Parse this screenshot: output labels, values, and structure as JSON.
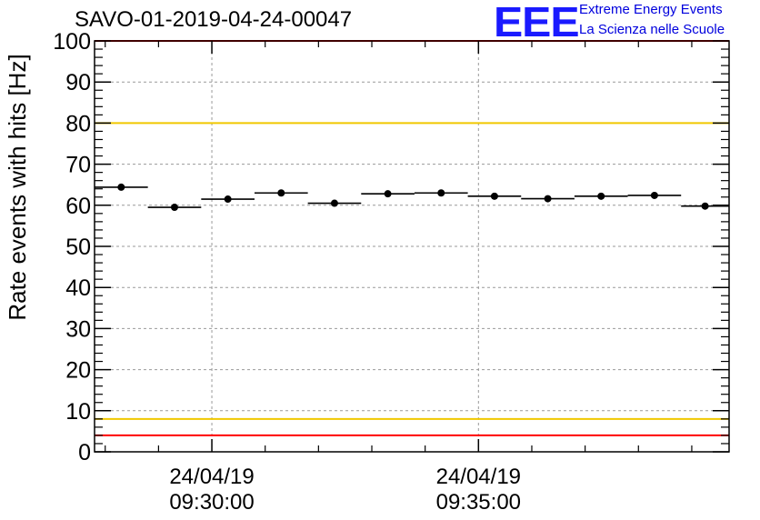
{
  "chart_data": {
    "type": "scatter",
    "title": "SAVO-01-2019-04-24-00047",
    "xlabel": "",
    "ylabel": "Rate events with hits [Hz]",
    "ylim": [
      0,
      100
    ],
    "yticks": [
      0,
      10,
      20,
      30,
      40,
      50,
      60,
      70,
      80,
      90,
      100
    ],
    "grid": true,
    "x_ticks": [
      {
        "label_date": "24/04/19",
        "label_time": "09:30:00",
        "minute": 0
      },
      {
        "label_date": "24/04/19",
        "label_time": "09:35:00",
        "minute": 5
      }
    ],
    "xlim_minutes": [
      -2.2,
      9.7
    ],
    "bins": [
      {
        "start": -2.2,
        "end": -1.2,
        "value": 64.4,
        "error": 0.6
      },
      {
        "start": -1.2,
        "end": -0.2,
        "value": 59.5,
        "error": 0.6
      },
      {
        "start": -0.2,
        "end": 0.8,
        "value": 61.5,
        "error": 0.6
      },
      {
        "start": 0.8,
        "end": 1.8,
        "value": 63.0,
        "error": 0.6
      },
      {
        "start": 1.8,
        "end": 2.8,
        "value": 60.5,
        "error": 0.6
      },
      {
        "start": 2.8,
        "end": 3.8,
        "value": 62.8,
        "error": 0.6
      },
      {
        "start": 3.8,
        "end": 4.8,
        "value": 63.0,
        "error": 0.6
      },
      {
        "start": 4.8,
        "end": 5.8,
        "value": 62.2,
        "error": 0.6
      },
      {
        "start": 5.8,
        "end": 6.8,
        "value": 61.6,
        "error": 0.6
      },
      {
        "start": 6.8,
        "end": 7.8,
        "value": 62.2,
        "error": 0.6
      },
      {
        "start": 7.8,
        "end": 8.8,
        "value": 62.4,
        "error": 0.6
      },
      {
        "start": 8.8,
        "end": 9.7,
        "value": 59.8,
        "error": 0.6
      }
    ],
    "reference_lines": [
      {
        "name": "upper-red-limit",
        "value": 100,
        "color": "#ff0000"
      },
      {
        "name": "upper-yellow-limit",
        "value": 80,
        "color": "#f0c800"
      },
      {
        "name": "lower-yellow-limit",
        "value": 8,
        "color": "#f0c800"
      },
      {
        "name": "lower-red-limit",
        "value": 4,
        "color": "#ff0000"
      }
    ]
  },
  "logo": {
    "mark": "EEE",
    "line1": "Extreme Energy Events",
    "line2": "La Scienza nelle Scuole",
    "color": "#1a1aff"
  }
}
